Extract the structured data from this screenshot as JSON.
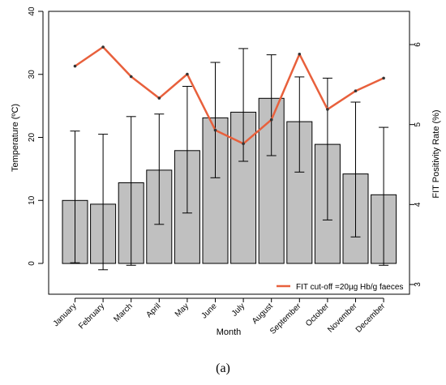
{
  "caption": "(a)",
  "chart_data": {
    "type": "bar",
    "categories": [
      "January",
      "February",
      "March",
      "April",
      "May",
      "June",
      "July",
      "August",
      "September",
      "October",
      "November",
      "December"
    ],
    "bars": {
      "name": "Temperature",
      "values": [
        10.0,
        9.4,
        12.8,
        14.8,
        17.9,
        23.1,
        24.0,
        26.2,
        22.5,
        18.9,
        14.2,
        10.9
      ],
      "error_low": [
        0.1,
        -1.0,
        -0.3,
        6.2,
        8.0,
        13.6,
        16.2,
        17.1,
        14.5,
        6.9,
        4.2,
        -0.3
      ],
      "error_high": [
        21.0,
        20.5,
        23.3,
        23.7,
        28.1,
        31.9,
        34.1,
        33.1,
        29.6,
        29.4,
        25.6,
        21.6
      ],
      "color": "#c0c0c0"
    },
    "line": {
      "name": "FIT cut-off =20µg Hb/g faeces",
      "values": [
        5.73,
        5.97,
        5.6,
        5.33,
        5.63,
        4.93,
        4.76,
        5.06,
        5.88,
        5.19,
        5.42,
        5.58
      ],
      "color": "#e8603c"
    },
    "xlabel": "Month",
    "ylabel": "Temperature (ºC)",
    "y2label": "FIT Positivity Rate (%)",
    "ylim": [
      -5,
      40
    ],
    "y2lim": [
      3,
      6.15
    ],
    "yticks": [
      0,
      10,
      20,
      30,
      40
    ],
    "y2ticks": [
      3,
      4,
      5,
      6
    ],
    "legend_position": "bottom-right",
    "grid": false
  }
}
